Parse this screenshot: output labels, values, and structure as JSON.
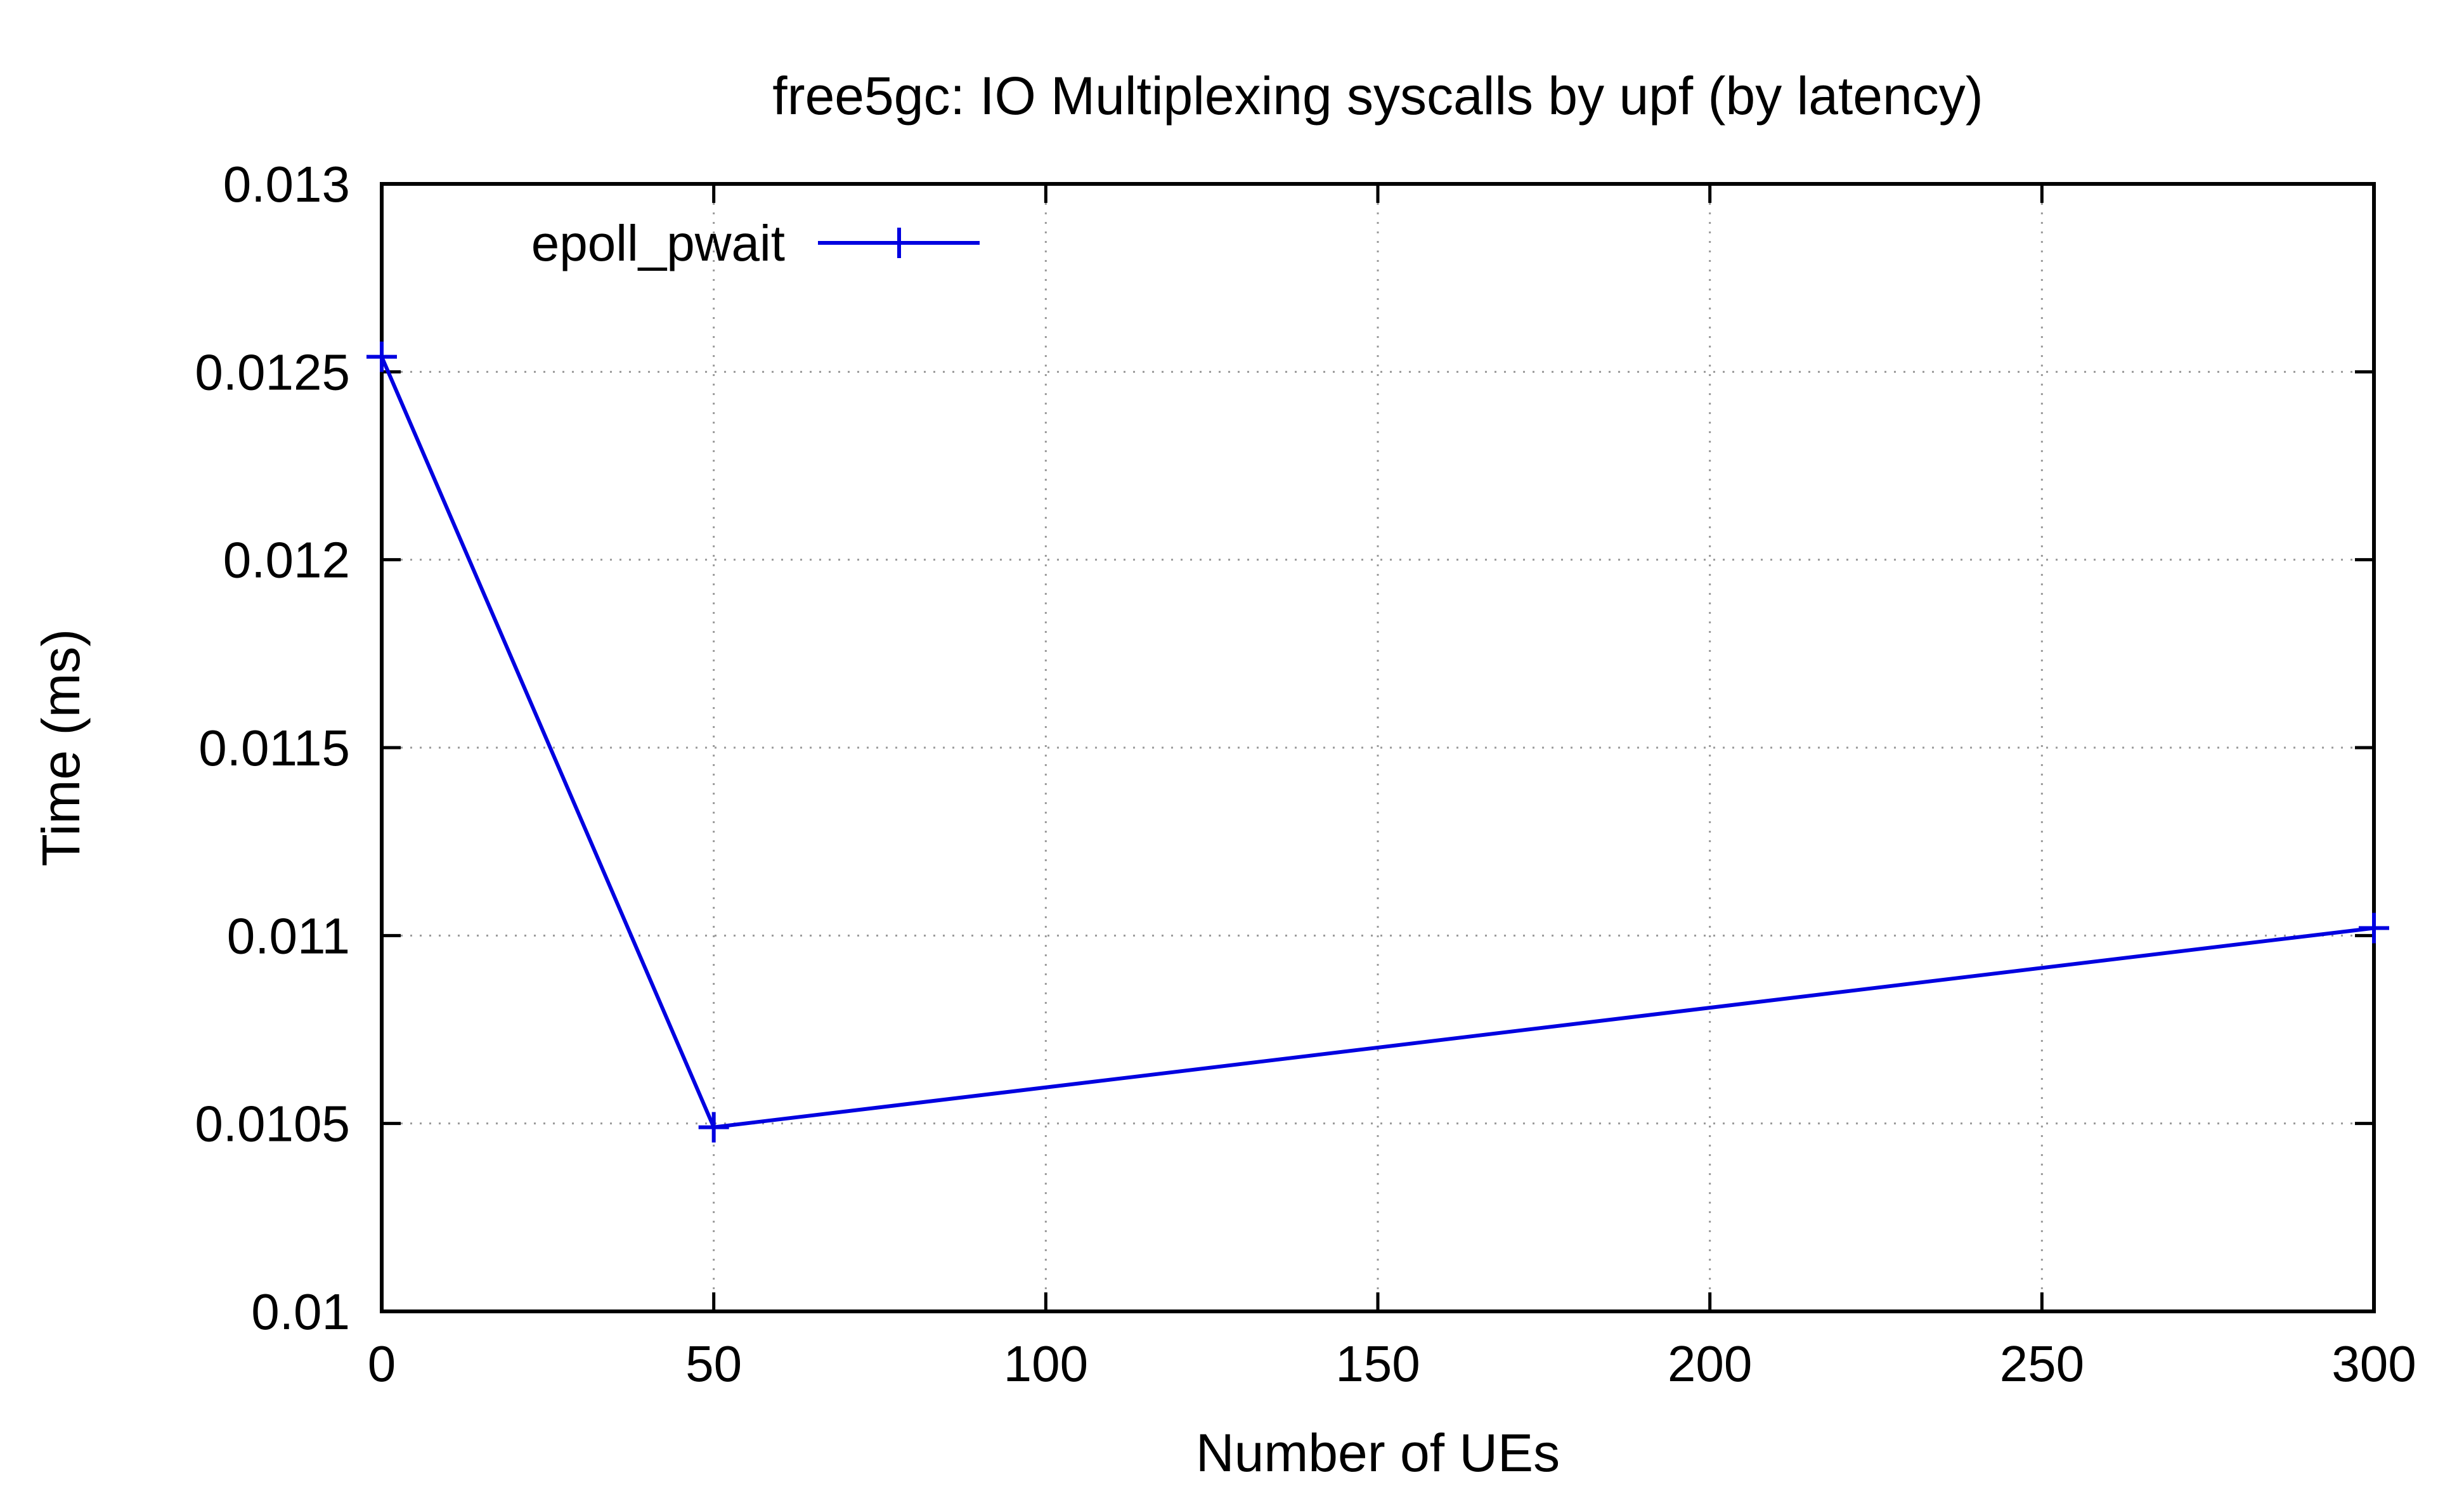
{
  "chart_data": {
    "type": "line",
    "title": "free5gc: IO Multiplexing syscalls by upf (by latency)",
    "xlabel": "Number of UEs",
    "ylabel": "Time (ms)",
    "xlim": [
      0,
      300
    ],
    "ylim": [
      0.01,
      0.013
    ],
    "x_ticks": [
      0,
      50,
      100,
      150,
      200,
      250,
      300
    ],
    "x_tick_labels": [
      "0",
      "50",
      "100",
      "150",
      "200",
      "250",
      "300"
    ],
    "y_ticks": [
      0.01,
      0.0105,
      0.011,
      0.0115,
      0.012,
      0.0125,
      0.013
    ],
    "y_tick_labels": [
      "0.01",
      "0.0105",
      "0.011",
      "0.0115",
      "0.012",
      "0.0125",
      "0.013"
    ],
    "grid": true,
    "legend_position": "top-left",
    "series": [
      {
        "name": "epoll_pwait",
        "color": "#0000e0",
        "marker": "plus",
        "x": [
          0,
          50,
          300
        ],
        "y": [
          0.01254,
          0.01049,
          0.01102
        ]
      }
    ]
  }
}
